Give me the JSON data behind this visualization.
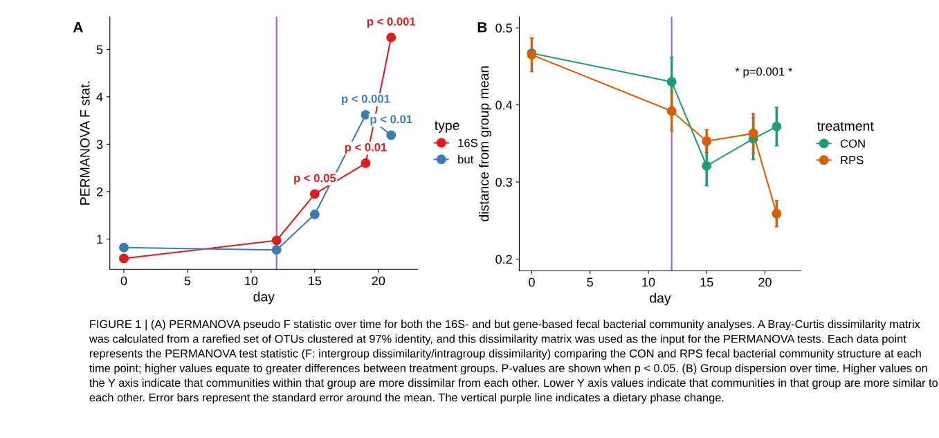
{
  "chart_data": [
    {
      "type": "line",
      "title": "A",
      "xlabel": "day",
      "ylabel": "PERMANOVA F stat.",
      "legend_title": "type",
      "legend": "right",
      "marker": "circle",
      "line_style": "solid",
      "grid": false,
      "xlim": [
        -1.1,
        23.1
      ],
      "xticks": [
        0,
        5,
        10,
        15,
        20
      ],
      "ylim": [
        0.36,
        5.69
      ],
      "yticks": [
        1,
        2,
        3,
        4,
        5
      ],
      "series": [
        {
          "name": "16S",
          "color": "#e41a1c",
          "x": [
            0,
            12,
            15,
            19,
            21
          ],
          "values": [
            0.59,
            0.97,
            1.95,
            2.6,
            5.25
          ]
        },
        {
          "name": "but",
          "color": "#377eb8",
          "x": [
            0,
            12,
            15,
            19,
            21
          ],
          "values": [
            0.82,
            0.77,
            1.52,
            3.62,
            3.19
          ]
        }
      ],
      "ref_lines": [
        {
          "axis": "x",
          "value": 12,
          "color": "#a35fd6"
        }
      ],
      "annotations": [
        {
          "text": "p < 0.05",
          "x": 15,
          "y": 1.95
        },
        {
          "text": "p < 0.01",
          "x": 19,
          "y": 2.6
        },
        {
          "text": "p < 0.001",
          "x": 21,
          "y": 5.25
        },
        {
          "text": "p < 0.001",
          "x": 19,
          "y": 3.62
        },
        {
          "text": "p < 0.01",
          "x": 21,
          "y": 3.19
        },
        "FIGURE 1 | (A) PERMANOVA pseudo F statistic over time for both the 16S- and but gene-based fecal bacterial community analyses. A Bray-Curtis dissimilarity matrix was calculated from a rarefied set of OTUs clustered at 97% identity, and this dissimilarity matrix was used as the input for the PERMANOVA tests. Each data point represents the PERMANOVA test statistic (F: intergroup dissimilarity/intragroup dissimilarity) comparing the CON and RPS fecal bacterial community structure at each time point; higher values equate to greater differences between treatment groups. P-values are shown when p < 0.05. (B) Group dispersion over time. Higher values on the Y axis indicate that communities within that group are more dissimilar from each other. Lower Y axis values indicate that communities in that group are more similar to each other. Error bars represent the standard error around the mean. The vertical purple line indicates a dietary phase change."
      ]
    },
    {
      "type": "line",
      "title": "B",
      "xlabel": "day",
      "ylabel": "distance from group mean",
      "legend_title": "treatment",
      "legend": "right",
      "marker": "circle",
      "line_style": "solid",
      "grid": false,
      "xlim": [
        -1.07,
        23.09
      ],
      "xticks": [
        0,
        5,
        10,
        15,
        20
      ],
      "ylim": [
        0.185,
        0.5145
      ],
      "yticks": [
        0.2,
        0.3,
        0.4,
        0.5
      ],
      "series": [
        {
          "name": "CON",
          "color": "#1b9e77",
          "x": [
            0,
            12,
            15,
            19,
            21
          ],
          "values": [
            0.467,
            0.43,
            0.321,
            0.356,
            0.372
          ],
          "errors": [
            null,
            0.032,
            0.026,
            0.027,
            0.025
          ]
        },
        {
          "name": "RPS",
          "color": "#d95f02",
          "x": [
            0,
            12,
            15,
            19,
            21
          ],
          "values": [
            0.465,
            0.392,
            0.353,
            0.363,
            0.259
          ],
          "errors": [
            0.022,
            0.026,
            0.015,
            0.026,
            0.017
          ]
        }
      ],
      "ref_lines": [
        {
          "axis": "x",
          "value": 12,
          "color": "#a35fd6"
        }
      ],
      "annotations": [
        "* p=0.001 *"
      ]
    }
  ]
}
